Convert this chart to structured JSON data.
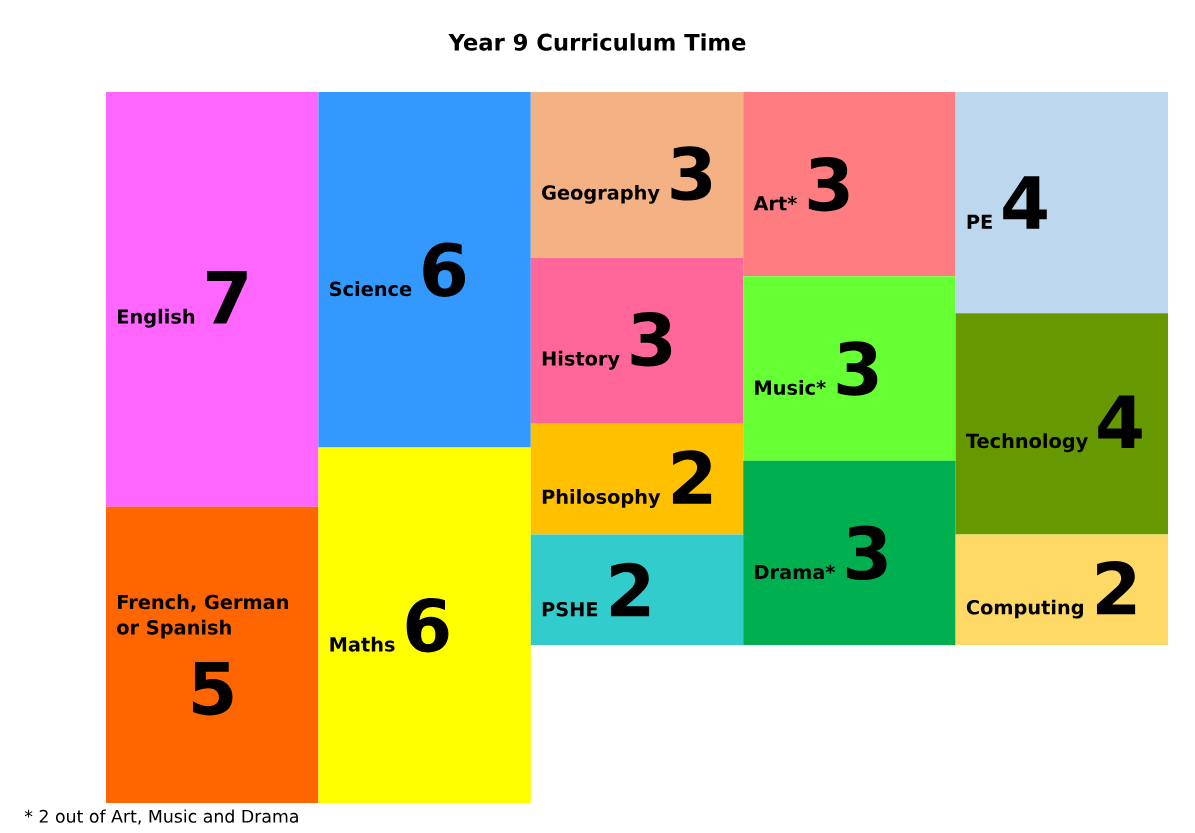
{
  "chart_data": {
    "type": "other",
    "title": "Year 9 Curriculum Time",
    "categories": [
      "English",
      "French, German or Spanish",
      "Science",
      "Maths",
      "Geography",
      "History",
      "Philosophy",
      "PSHE",
      "Art*",
      "Music*",
      "Drama*",
      "PE",
      "Technology",
      "Computing"
    ],
    "values": [
      7,
      5,
      6,
      6,
      3,
      3,
      2,
      2,
      3,
      3,
      3,
      4,
      4,
      2
    ],
    "colors": [
      "#ff66ff",
      "#ff6600",
      "#3399ff",
      "#ffff00",
      "#f4b183",
      "#ff6699",
      "#ffc000",
      "#33cccc",
      "#ff7c80",
      "#66ff33",
      "#00b050",
      "#bdd7ee",
      "#669900",
      "#ffd966"
    ],
    "data_labels": true,
    "annotations": [
      "* 2 out of Art, Music and Drama"
    ]
  }
}
